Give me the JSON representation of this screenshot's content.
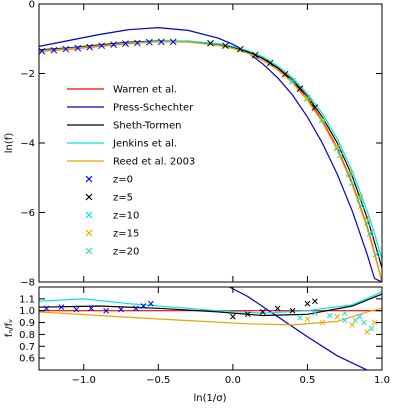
{
  "chart_data": [
    {
      "type": "line",
      "panel": "top",
      "xlabel": "",
      "ylabel": "ln(f)",
      "xlim": [
        -1.3,
        1.0
      ],
      "ylim": [
        -8,
        0
      ],
      "xticks": [
        "",
        "",
        "",
        "",
        "",
        ""
      ],
      "yticks": [
        "0",
        "−2",
        "−4",
        "−6",
        "−8"
      ],
      "legend_position": "center-left",
      "series": [
        {
          "name": "Warren et al.",
          "color": "#ff0000",
          "style": "line",
          "x": [
            -1.3,
            -1.1,
            -0.9,
            -0.7,
            -0.5,
            -0.3,
            -0.1,
            0.0,
            0.1,
            0.2,
            0.3,
            0.4,
            0.5,
            0.6,
            0.7,
            0.8,
            0.9,
            0.95,
            1.0
          ],
          "y": [
            -1.36,
            -1.3,
            -1.22,
            -1.14,
            -1.08,
            -1.08,
            -1.15,
            -1.24,
            -1.37,
            -1.57,
            -1.85,
            -2.22,
            -2.72,
            -3.35,
            -4.15,
            -5.15,
            -6.4,
            -7.15,
            -8.0
          ]
        },
        {
          "name": "Press-Schechter",
          "color": "#0000cc",
          "style": "line",
          "x": [
            -1.3,
            -1.1,
            -0.9,
            -0.7,
            -0.5,
            -0.3,
            -0.1,
            0.0,
            0.1,
            0.2,
            0.3,
            0.4,
            0.5,
            0.6,
            0.7,
            0.8,
            0.9,
            0.95,
            1.0
          ],
          "y": [
            -1.22,
            -1.05,
            -0.88,
            -0.74,
            -0.68,
            -0.76,
            -0.98,
            -1.16,
            -1.4,
            -1.72,
            -2.12,
            -2.62,
            -3.25,
            -4.0,
            -4.9,
            -5.95,
            -7.2,
            -7.9,
            -8.0
          ]
        },
        {
          "name": "Sheth-Tormen",
          "color": "#000000",
          "style": "line",
          "x": [
            -1.3,
            -1.1,
            -0.9,
            -0.7,
            -0.5,
            -0.3,
            -0.1,
            0.0,
            0.1,
            0.2,
            0.3,
            0.4,
            0.5,
            0.6,
            0.7,
            0.8,
            0.9,
            0.95,
            1.0
          ],
          "y": [
            -1.32,
            -1.26,
            -1.18,
            -1.1,
            -1.06,
            -1.07,
            -1.15,
            -1.24,
            -1.37,
            -1.56,
            -1.83,
            -2.18,
            -2.65,
            -3.25,
            -4.0,
            -4.95,
            -6.15,
            -6.85,
            -7.6
          ]
        },
        {
          "name": "Jenkins et al.",
          "color": "#00e5e5",
          "style": "line",
          "x": [
            -1.3,
            -1.1,
            -0.9,
            -0.7,
            -0.5,
            -0.3,
            -0.1,
            0.0,
            0.1,
            0.2,
            0.3,
            0.4,
            0.5,
            0.6,
            0.7,
            0.8,
            0.9,
            0.95,
            1.0
          ],
          "y": [
            -1.34,
            -1.28,
            -1.2,
            -1.12,
            -1.07,
            -1.07,
            -1.14,
            -1.22,
            -1.34,
            -1.52,
            -1.78,
            -2.12,
            -2.58,
            -3.15,
            -3.88,
            -4.8,
            -5.95,
            -6.6,
            -7.35
          ]
        },
        {
          "name": "Reed et al. 2003",
          "color": "#e5a800",
          "style": "line",
          "x": [
            -1.3,
            -1.1,
            -0.9,
            -0.7,
            -0.5,
            -0.3,
            -0.1,
            0.0,
            0.1,
            0.2,
            0.3,
            0.4,
            0.5,
            0.6,
            0.7,
            0.8,
            0.9,
            0.95,
            1.0
          ],
          "y": [
            -1.35,
            -1.29,
            -1.21,
            -1.13,
            -1.09,
            -1.1,
            -1.19,
            -1.28,
            -1.42,
            -1.62,
            -1.9,
            -2.27,
            -2.77,
            -3.4,
            -4.2,
            -5.2,
            -6.45,
            -7.2,
            -8.0
          ]
        },
        {
          "name": "z=0",
          "color": "#0000ff",
          "style": "marker",
          "x": [
            -1.28,
            -1.2,
            -1.12,
            -1.04,
            -0.96,
            -0.88,
            -0.8,
            -0.72,
            -0.64,
            -0.56,
            -0.48,
            -0.4
          ],
          "y": [
            -1.36,
            -1.33,
            -1.3,
            -1.27,
            -1.24,
            -1.2,
            -1.17,
            -1.14,
            -1.12,
            -1.1,
            -1.09,
            -1.09
          ]
        },
        {
          "name": "z=5",
          "color": "#000000",
          "style": "marker",
          "x": [
            -0.15,
            -0.05,
            0.05,
            0.15,
            0.25,
            0.35,
            0.45,
            0.55
          ],
          "y": [
            -1.13,
            -1.2,
            -1.3,
            -1.47,
            -1.7,
            -2.02,
            -2.44,
            -2.98
          ]
        },
        {
          "name": "z=10",
          "color": "#00e5e5",
          "style": "marker",
          "x": [
            0.4,
            0.5,
            0.6,
            0.7,
            0.78,
            0.85,
            0.9
          ],
          "y": [
            -2.22,
            -2.72,
            -3.35,
            -4.15,
            -4.9,
            -5.6,
            -6.3
          ]
        },
        {
          "name": "z=15",
          "color": "#e5b000",
          "style": "marker",
          "x": [
            0.5,
            0.6,
            0.7,
            0.78,
            0.85,
            0.9
          ],
          "y": [
            -2.7,
            -3.3,
            -4.1,
            -4.85,
            -5.55,
            -6.2
          ]
        },
        {
          "name": "z=20",
          "color": "#33e0a0",
          "style": "marker",
          "x": [
            0.72,
            0.8,
            0.86,
            0.92,
            0.96
          ],
          "y": [
            -4.35,
            -5.15,
            -5.8,
            -6.6,
            -7.2
          ]
        }
      ]
    },
    {
      "type": "line",
      "panel": "bottom",
      "xlabel": "ln(1/σ)",
      "ylabel": "fₙ/fᵥ",
      "xlim": [
        -1.3,
        1.0
      ],
      "ylim": [
        0.5,
        1.2
      ],
      "xticks": [
        "−1.0",
        "−0.5",
        "0.0",
        "0.5",
        "1.0"
      ],
      "yticks": [
        "1.1",
        "1.0",
        "0.9",
        "0.8",
        "0.7",
        "0.6"
      ],
      "series": [
        {
          "name": "Warren et al.",
          "color": "#ff0000",
          "style": "line",
          "x": [
            -1.3,
            1.0
          ],
          "y": [
            1.0,
            1.0
          ]
        },
        {
          "name": "Press-Schechter",
          "color": "#0000cc",
          "style": "line",
          "x": [
            -0.1,
            0.1,
            0.3,
            0.5,
            0.7,
            0.9,
            1.0
          ],
          "y": [
            1.25,
            1.12,
            0.95,
            0.78,
            0.62,
            0.5,
            0.45
          ]
        },
        {
          "name": "Sheth-Tormen",
          "color": "#000000",
          "style": "line",
          "x": [
            -1.3,
            -0.9,
            -0.5,
            -0.1,
            0.2,
            0.5,
            0.8,
            1.0
          ],
          "y": [
            1.03,
            1.04,
            1.02,
            0.99,
            0.96,
            0.97,
            1.04,
            1.14
          ]
        },
        {
          "name": "Jenkins et al.",
          "color": "#00e5e5",
          "style": "line",
          "x": [
            -1.3,
            -1.0,
            -0.7,
            -0.4,
            -0.1,
            0.2,
            0.5,
            0.8,
            0.95,
            1.0
          ],
          "y": [
            1.08,
            1.1,
            1.06,
            1.03,
            1.0,
            0.98,
            1.0,
            1.05,
            1.13,
            1.16
          ]
        },
        {
          "name": "Reed et al. 2003",
          "color": "#e5a800",
          "style": "line",
          "x": [
            -1.3,
            -0.9,
            -0.5,
            -0.2,
            0.1,
            0.4,
            0.7,
            0.9,
            1.0
          ],
          "y": [
            0.99,
            0.96,
            0.93,
            0.91,
            0.89,
            0.88,
            0.91,
            0.99,
            1.02
          ]
        },
        {
          "name": "z=0",
          "color": "#0000ff",
          "style": "marker",
          "x": [
            -1.25,
            -1.15,
            -1.05,
            -0.95,
            -0.85,
            -0.75,
            -0.65,
            -0.6,
            -0.55
          ],
          "y": [
            1.02,
            1.03,
            1.01,
            1.02,
            1.0,
            1.01,
            1.02,
            1.04,
            1.06
          ]
        },
        {
          "name": "z=5",
          "color": "#000000",
          "style": "marker",
          "x": [
            0.0,
            0.1,
            0.2,
            0.3,
            0.4,
            0.5,
            0.55
          ],
          "y": [
            0.95,
            0.97,
            0.99,
            1.02,
            1.0,
            1.06,
            1.08
          ]
        },
        {
          "name": "z=10",
          "color": "#00e5e5",
          "style": "marker",
          "x": [
            0.45,
            0.55,
            0.65,
            0.75,
            0.85
          ],
          "y": [
            0.94,
            0.98,
            0.96,
            0.92,
            0.95
          ]
        },
        {
          "name": "z=15",
          "color": "#e5b000",
          "style": "marker",
          "x": [
            0.5,
            0.6,
            0.7,
            0.8,
            0.9,
            0.95
          ],
          "y": [
            0.93,
            0.9,
            0.95,
            0.88,
            0.82,
            0.9
          ]
        },
        {
          "name": "z=20",
          "color": "#33e0a0",
          "style": "marker",
          "x": [
            0.75,
            0.82,
            0.88,
            0.93
          ],
          "y": [
            0.98,
            0.92,
            0.9,
            0.85
          ]
        }
      ]
    }
  ]
}
